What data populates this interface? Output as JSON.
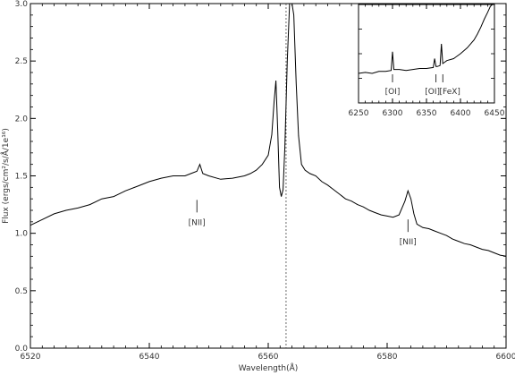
{
  "chart_data": [
    {
      "type": "line",
      "xlabel": "Wavelength(Å)",
      "ylabel": "Flux (ergs/cm²/s/Å/1e¹⁶)",
      "xlim": [
        6520,
        6600
      ],
      "ylim": [
        0.0,
        3.0
      ],
      "x_ticks": [
        "6520",
        "6540",
        "6560",
        "6580",
        "6600"
      ],
      "y_ticks": [
        "0.0",
        "0.5",
        "1.0",
        "1.5",
        "2.0",
        "2.5",
        "3.0"
      ],
      "series": [
        {
          "x": [
            6520,
            6522,
            6524,
            6526,
            6528,
            6530,
            6532,
            6534,
            6536,
            6538,
            6540,
            6542,
            6544,
            6546,
            6547,
            6548,
            6548.5,
            6549,
            6550,
            6552,
            6554,
            6556,
            6557,
            6558,
            6559,
            6560,
            6560.6,
            6561,
            6561.3,
            6561.6,
            6561.9,
            6562.2,
            6562.5,
            6562.8,
            6563.2,
            6563.6,
            6564,
            6564.3,
            6564.7,
            6565.1,
            6565.6,
            6566.2,
            6567,
            6568,
            6569,
            6570,
            6571,
            6572,
            6573,
            6574,
            6575,
            6576,
            6577,
            6578,
            6579,
            6580,
            6581,
            6582,
            6583,
            6583.5,
            6584,
            6584.5,
            6585,
            6586,
            6587,
            6588,
            6589,
            6590,
            6591,
            6592,
            6593,
            6594,
            6595,
            6596,
            6597,
            6598,
            6599,
            6600
          ],
          "y": [
            1.07,
            1.12,
            1.17,
            1.2,
            1.22,
            1.25,
            1.3,
            1.32,
            1.37,
            1.41,
            1.45,
            1.48,
            1.5,
            1.5,
            1.52,
            1.54,
            1.6,
            1.52,
            1.5,
            1.47,
            1.48,
            1.5,
            1.52,
            1.55,
            1.6,
            1.68,
            1.86,
            2.15,
            2.33,
            1.9,
            1.4,
            1.32,
            1.38,
            1.75,
            2.5,
            3.0,
            3.0,
            2.9,
            2.3,
            1.85,
            1.6,
            1.55,
            1.52,
            1.5,
            1.45,
            1.42,
            1.38,
            1.34,
            1.3,
            1.28,
            1.25,
            1.23,
            1.2,
            1.18,
            1.16,
            1.15,
            1.14,
            1.16,
            1.28,
            1.37,
            1.3,
            1.17,
            1.08,
            1.05,
            1.04,
            1.02,
            1.0,
            0.98,
            0.95,
            0.93,
            0.91,
            0.9,
            0.88,
            0.86,
            0.85,
            0.83,
            0.81,
            0.8
          ]
        }
      ],
      "reference_line_x": 6563,
      "annotations": [
        {
          "text": "[NII]",
          "x": 6548
        },
        {
          "text": "[NII]",
          "x": 6583.5
        }
      ]
    },
    {
      "type": "line",
      "xlim": [
        6250,
        6450
      ],
      "x_ticks": [
        "6250",
        "6300",
        "6350",
        "6400",
        "6450"
      ],
      "series": [
        {
          "x": [
            6250,
            6260,
            6270,
            6280,
            6290,
            6298,
            6300,
            6302,
            6310,
            6320,
            6330,
            6340,
            6350,
            6360,
            6362,
            6364,
            6366,
            6370,
            6372,
            6374,
            6376,
            6380,
            6390,
            6400,
            6410,
            6420,
            6425,
            6430,
            6435,
            6440,
            6444,
            6447
          ],
          "y": [
            0.3,
            0.31,
            0.3,
            0.32,
            0.32,
            0.33,
            0.52,
            0.34,
            0.34,
            0.33,
            0.34,
            0.35,
            0.35,
            0.36,
            0.45,
            0.37,
            0.37,
            0.38,
            0.6,
            0.4,
            0.41,
            0.43,
            0.45,
            0.5,
            0.56,
            0.64,
            0.7,
            0.77,
            0.85,
            0.92,
            0.98,
            1.0
          ]
        }
      ],
      "annotations": [
        {
          "text": "[OI]",
          "x": 6300
        },
        {
          "text": "[OI]",
          "x": 6364
        },
        {
          "text": "[FeX]",
          "x": 6374
        }
      ]
    }
  ]
}
